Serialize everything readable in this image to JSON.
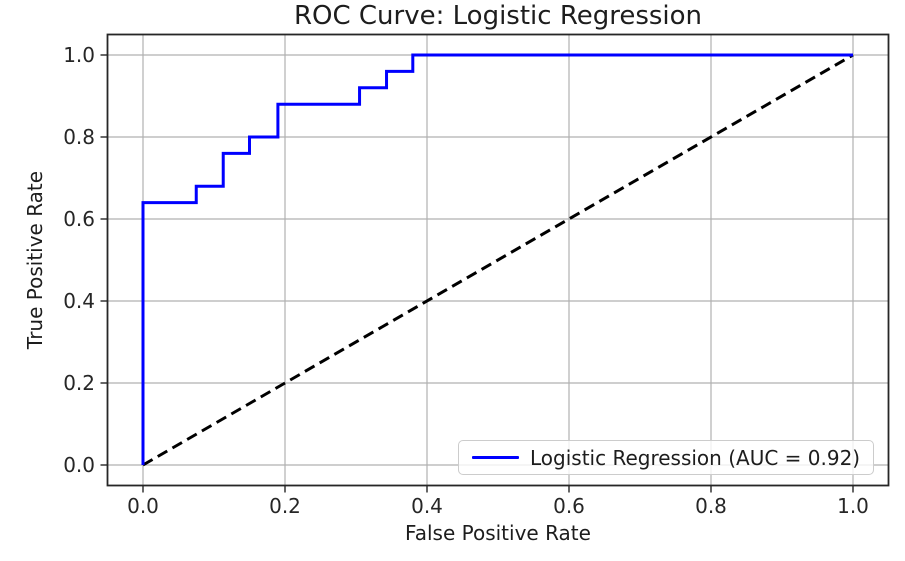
{
  "chart_data": {
    "type": "line",
    "title": "ROC Curve: Logistic Regression",
    "xlabel": "False Positive Rate",
    "ylabel": "True Positive Rate",
    "xlim": [
      -0.05,
      1.05
    ],
    "ylim": [
      -0.05,
      1.05
    ],
    "xticks": [
      0.0,
      0.2,
      0.4,
      0.6,
      0.8,
      1.0
    ],
    "yticks": [
      0.0,
      0.2,
      0.4,
      0.6,
      0.8,
      1.0
    ],
    "xtick_labels": [
      "0.0",
      "0.2",
      "0.4",
      "0.6",
      "0.8",
      "1.0"
    ],
    "ytick_labels": [
      "0.0",
      "0.2",
      "0.4",
      "0.6",
      "0.8",
      "1.0"
    ],
    "grid": true,
    "auc": 0.92,
    "series": [
      {
        "name": "reference-diagonal",
        "color": "#000000",
        "line_style": "dashed",
        "line_width": 3,
        "x": [
          0.0,
          1.0
        ],
        "y": [
          0.0,
          1.0
        ]
      },
      {
        "name": "Logistic Regression (AUC = 0.92)",
        "color": "#0000ff",
        "line_style": "solid",
        "line_width": 3,
        "drawstyle": "steps",
        "x": [
          0.0,
          0.0,
          0.075,
          0.075,
          0.113,
          0.113,
          0.15,
          0.15,
          0.19,
          0.19,
          0.305,
          0.305,
          0.343,
          0.343,
          0.38,
          0.38,
          1.0
        ],
        "y": [
          0.0,
          0.64,
          0.64,
          0.68,
          0.68,
          0.76,
          0.76,
          0.8,
          0.8,
          0.88,
          0.88,
          0.92,
          0.92,
          0.96,
          0.96,
          1.0,
          1.0
        ]
      }
    ],
    "legend": {
      "location": "lower right",
      "entries": [
        {
          "label": "Logistic Regression (AUC = 0.92)",
          "color": "#0000ff",
          "line_style": "solid"
        }
      ]
    },
    "colors": {
      "curve": "#0000ff",
      "reference": "#000000",
      "grid": "#b0b0b0",
      "spine": "#262626",
      "text": "#1d1d1d",
      "legend_border": "#cccccc",
      "background": "#ffffff"
    }
  }
}
